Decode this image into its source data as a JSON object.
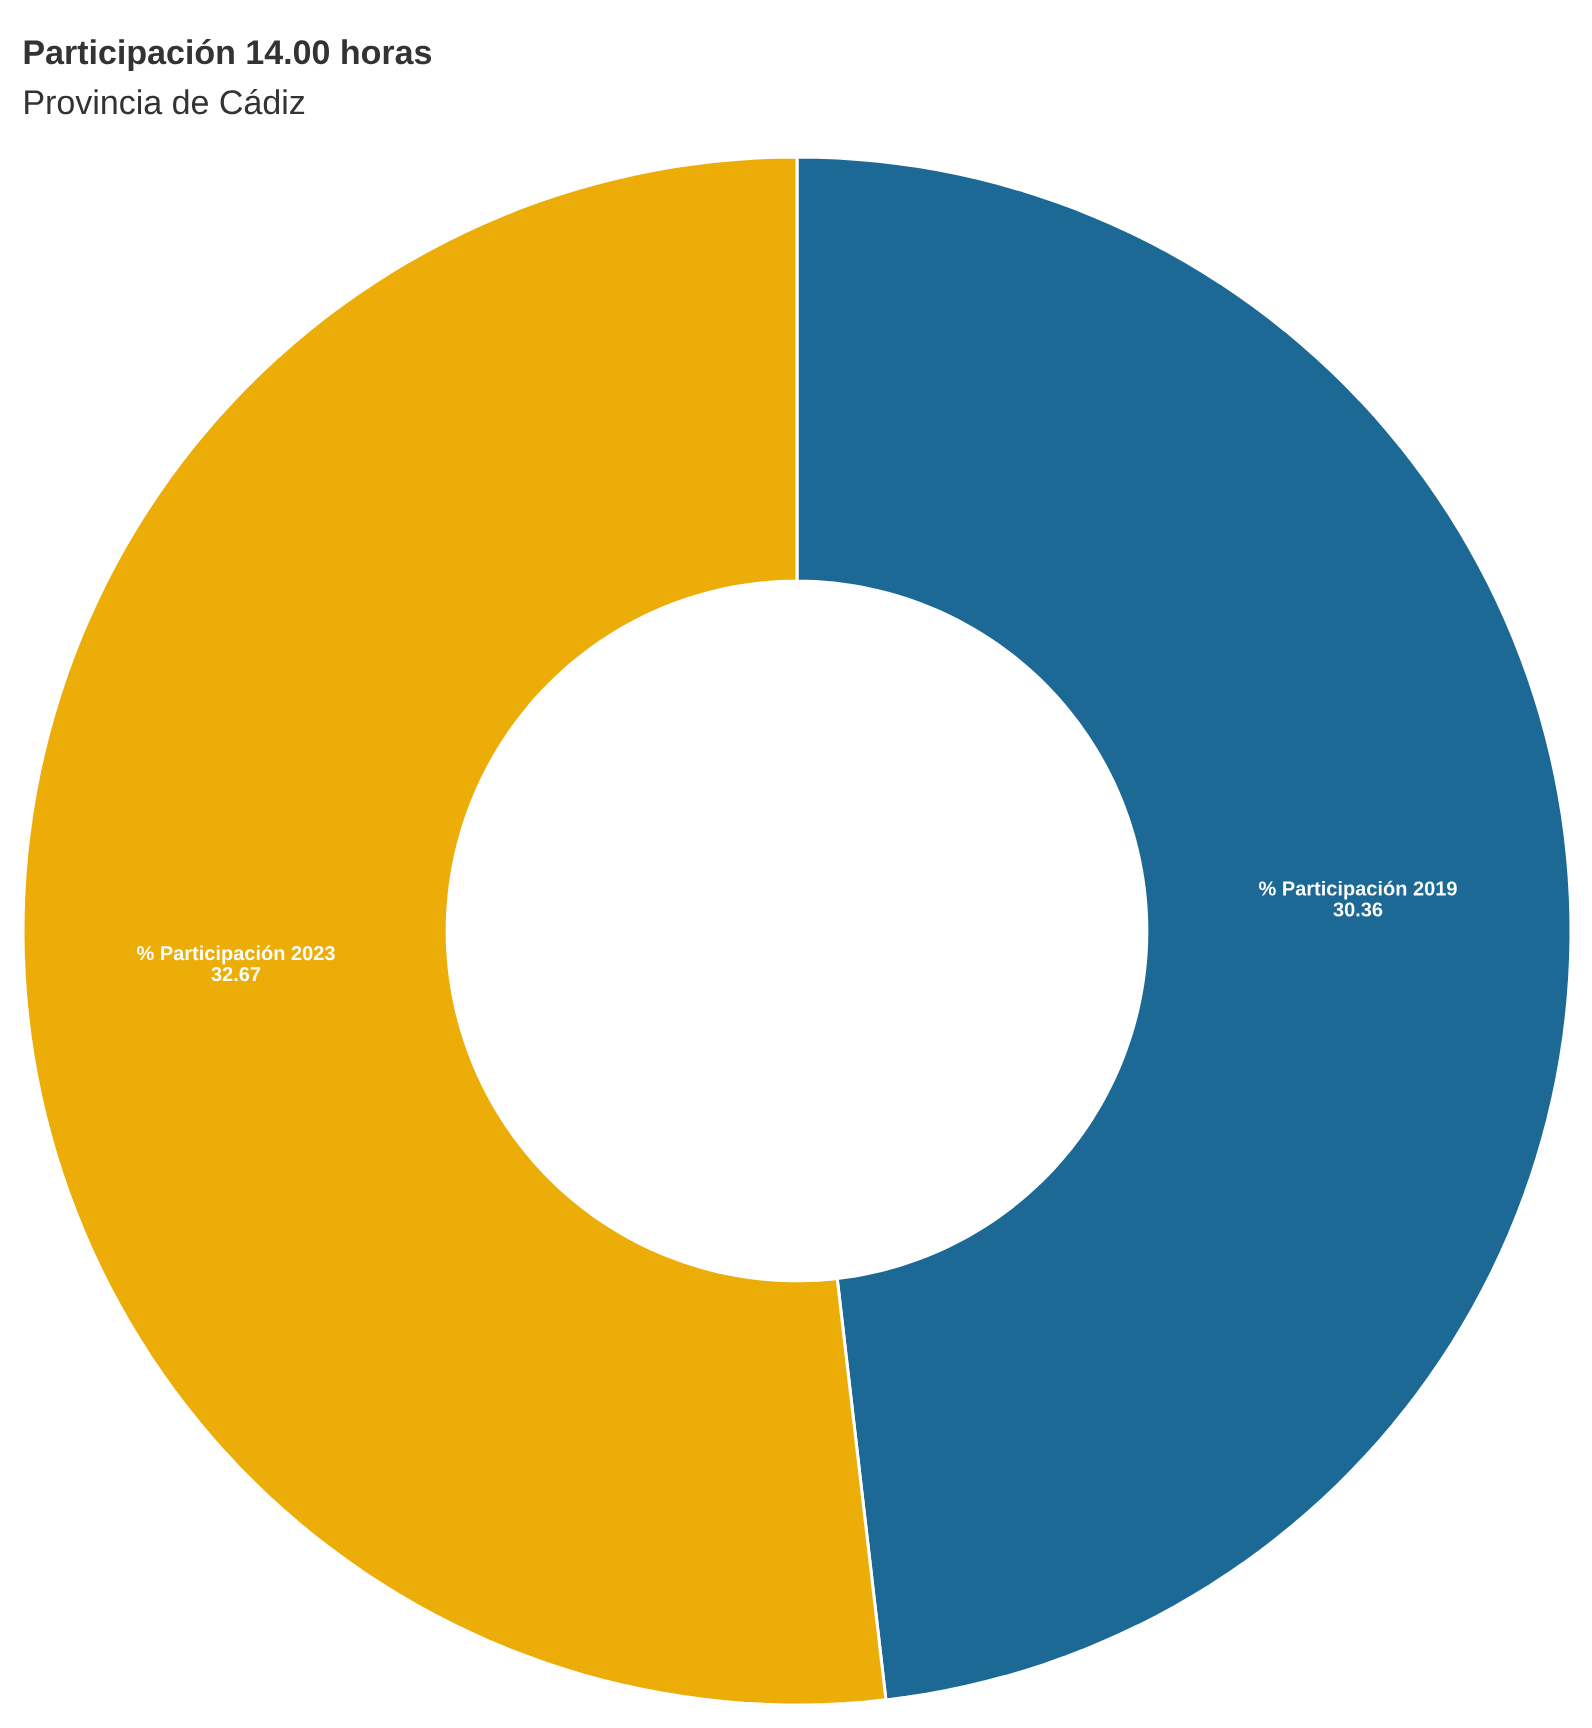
{
  "chart_data": {
    "type": "donut",
    "title": "Participación 14.00 horas",
    "subtitle": "Provincia de Cádiz",
    "categories": [
      "% Participación 2019",
      "% Participación 2023"
    ],
    "values": [
      30.36,
      32.67
    ],
    "colors": [
      "#1d6996",
      "#edad08"
    ],
    "data_labels": true
  }
}
